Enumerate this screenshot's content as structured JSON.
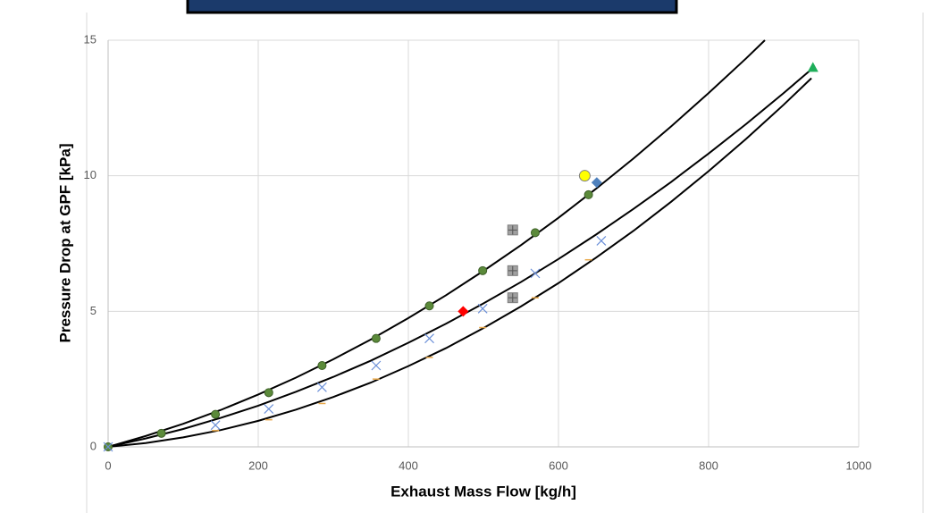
{
  "chart_data": {
    "type": "scatter",
    "x_label": "Exhaust Mass Flow [kg/h]",
    "y_label": "Pressure Drop at GPF [kPa]",
    "xlim": [
      0,
      1000
    ],
    "xticks": [
      0,
      200,
      400,
      600,
      800,
      1000
    ],
    "ylim": [
      0,
      15
    ],
    "yticks": [
      0,
      5,
      10,
      15
    ],
    "grid": true,
    "series": [
      {
        "kind": "line",
        "color": "#000000",
        "x": [
          0,
          50,
          100,
          150,
          200,
          250,
          300,
          350,
          400,
          450,
          500,
          550,
          600,
          650,
          700,
          750,
          800,
          850,
          875
        ],
        "values": [
          0,
          0.4,
          0.85,
          1.36,
          1.93,
          2.55,
          3.23,
          3.96,
          4.75,
          5.59,
          6.49,
          7.44,
          8.45,
          9.52,
          10.64,
          11.82,
          13.05,
          14.33,
          15
        ]
      },
      {
        "kind": "line",
        "color": "#000000",
        "x": [
          0,
          50,
          100,
          150,
          200,
          250,
          300,
          350,
          400,
          450,
          500,
          550,
          600,
          650,
          700,
          750,
          800,
          850,
          900,
          940
        ],
        "values": [
          0,
          0.31,
          0.66,
          1.07,
          1.52,
          2.03,
          2.58,
          3.18,
          3.84,
          4.54,
          5.29,
          6.08,
          6.93,
          7.83,
          8.78,
          9.77,
          10.82,
          11.91,
          13.05,
          14
        ]
      },
      {
        "kind": "line",
        "color": "#000000",
        "x": [
          0,
          50,
          100,
          150,
          200,
          250,
          300,
          350,
          400,
          450,
          500,
          550,
          600,
          650,
          700,
          750,
          800,
          850,
          900,
          937
        ],
        "values": [
          0,
          0.14,
          0.35,
          0.62,
          0.96,
          1.37,
          1.84,
          2.37,
          2.98,
          3.64,
          4.38,
          5.18,
          6.04,
          6.98,
          7.97,
          9.04,
          10.17,
          11.36,
          12.62,
          13.6
        ]
      },
      {
        "kind": "marker",
        "marker": "circle",
        "color": "#5b8a3a",
        "x": [
          0,
          71,
          143,
          214,
          285,
          357,
          428,
          499,
          569,
          640
        ],
        "values": [
          0,
          0.5,
          1.2,
          2.0,
          3.0,
          4.0,
          5.2,
          6.5,
          7.9,
          9.3
        ]
      },
      {
        "kind": "marker",
        "marker": "cross",
        "color": "#6a8fd8",
        "x": [
          0,
          143,
          214,
          285,
          357,
          428,
          499,
          569,
          657
        ],
        "values": [
          0,
          0.8,
          1.4,
          2.2,
          3.0,
          4.0,
          5.1,
          6.4,
          7.6
        ]
      },
      {
        "kind": "marker",
        "marker": "dash",
        "color": "#e8a84a",
        "x": [
          143,
          214,
          285,
          357,
          428,
          499,
          569,
          640
        ],
        "values": [
          0.6,
          1.0,
          1.6,
          2.5,
          3.3,
          4.4,
          5.5,
          6.9
        ]
      },
      {
        "kind": "marker",
        "marker": "ring",
        "color": "#ffff00",
        "x": [
          635
        ],
        "values": [
          10
        ]
      },
      {
        "kind": "marker",
        "marker": "diamond",
        "color": "#4f81bd",
        "x": [
          651
        ],
        "values": [
          9.75
        ]
      },
      {
        "kind": "marker",
        "marker": "square",
        "color": "#a0a0a0",
        "x": [
          539,
          539,
          539
        ],
        "values": [
          8.0,
          6.5,
          5.5
        ]
      },
      {
        "kind": "marker",
        "marker": "diamond",
        "color": "#ff0000",
        "x": [
          473
        ],
        "values": [
          5
        ]
      },
      {
        "kind": "marker",
        "marker": "triangle",
        "color": "#1fae5a",
        "x": [
          939
        ],
        "values": [
          14
        ]
      }
    ]
  }
}
